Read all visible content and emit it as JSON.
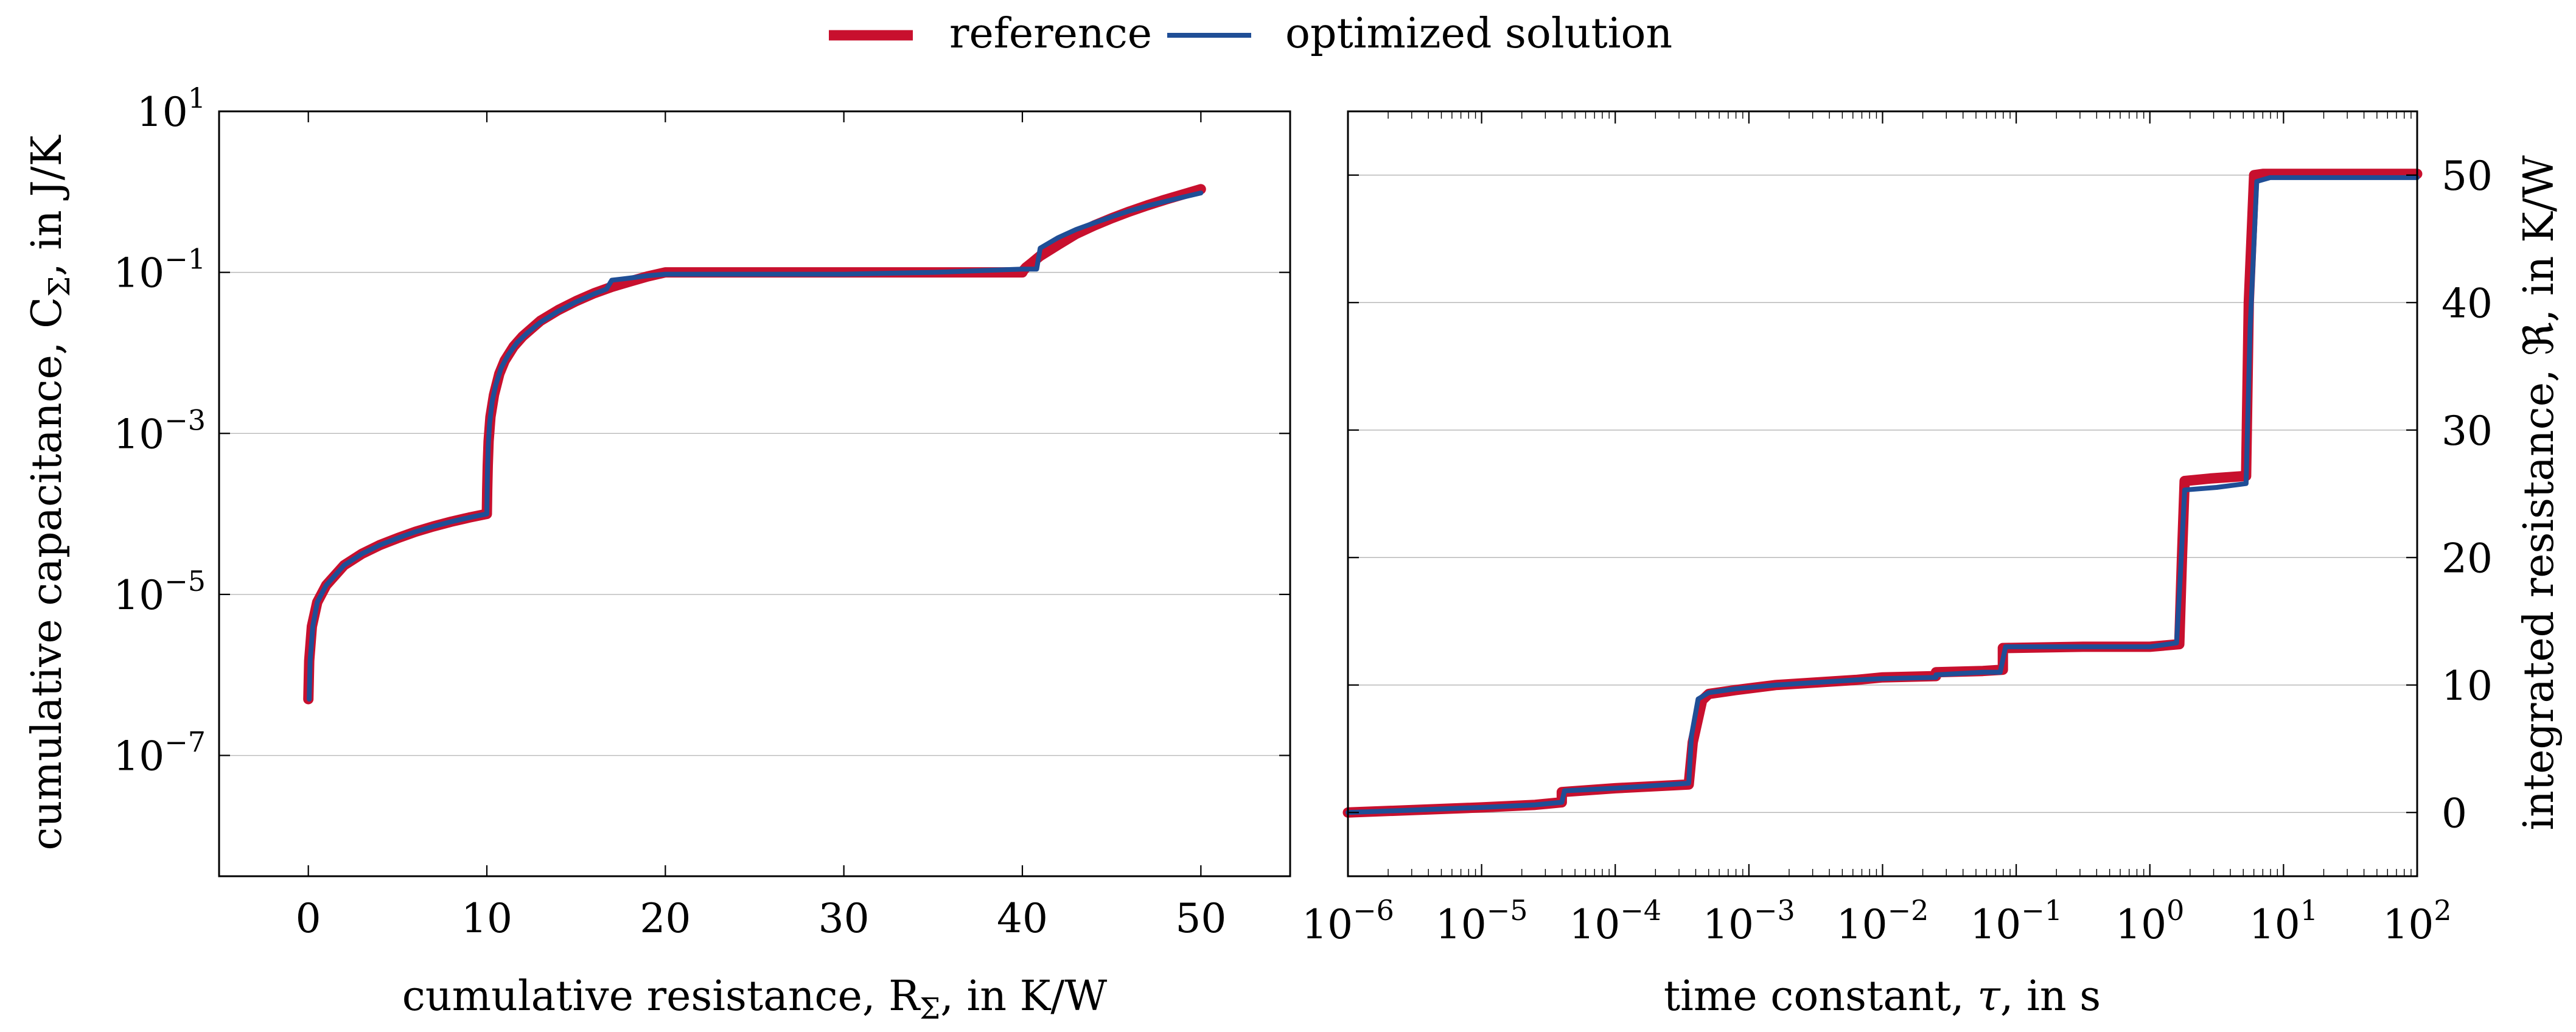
{
  "legend": {
    "reference_label": "reference",
    "optimized_label": "optimized solution",
    "reference_color": "#c8102e",
    "optimized_color": "#1f4e96"
  },
  "chart_data": [
    {
      "type": "line",
      "id": "cumulative",
      "xlabel": "cumulative resistance, R",
      "xlabel_sub": "Σ",
      "xlabel_tail": ", in K/W",
      "ylabel": "cumulative capacitance, C",
      "ylabel_sub": "Σ",
      "ylabel_tail": ", in J/K",
      "xscale": "linear",
      "yscale": "log",
      "xlim": [
        -5,
        55
      ],
      "ylim_exp": [
        -8.5,
        1
      ],
      "xticks": [
        0,
        10,
        20,
        30,
        40,
        50
      ],
      "xtick_labels": [
        "0",
        "10",
        "20",
        "30",
        "40",
        "50"
      ],
      "yticks_exp": [
        -7,
        -5,
        -3,
        -1,
        1
      ],
      "ytick_labels": [
        {
          "base": "10",
          "exp": "−7"
        },
        {
          "base": "10",
          "exp": "−5"
        },
        {
          "base": "10",
          "exp": "−3"
        },
        {
          "base": "10",
          "exp": "−1"
        },
        {
          "base": "10",
          "exp": "1"
        }
      ],
      "series": [
        {
          "name": "reference",
          "x": [
            0,
            0.05,
            0.2,
            0.5,
            1,
            2,
            3,
            4,
            5,
            6,
            7,
            8,
            9,
            10,
            10.02,
            10.05,
            10.1,
            10.2,
            10.4,
            10.7,
            11,
            11.5,
            12,
            12.5,
            13,
            14,
            15,
            16,
            17,
            18,
            19,
            20,
            25,
            30,
            35,
            40,
            40.05,
            40.2,
            40.5,
            41,
            42,
            43,
            44,
            45,
            46,
            47,
            48,
            49,
            50
          ],
          "y": [
            5e-07,
            1.5e-06,
            4e-06,
            8e-06,
            1.3e-05,
            2.3e-05,
            3.2e-05,
            4.1e-05,
            5e-05,
            6e-05,
            7e-05,
            8e-05,
            9e-05,
            0.0001,
            0.0002,
            0.0004,
            0.0008,
            0.0016,
            0.003,
            0.0055,
            0.008,
            0.012,
            0.016,
            0.02,
            0.025,
            0.034,
            0.044,
            0.055,
            0.066,
            0.077,
            0.089,
            0.1,
            0.1,
            0.1,
            0.1,
            0.1,
            0.105,
            0.115,
            0.13,
            0.16,
            0.22,
            0.3,
            0.38,
            0.47,
            0.57,
            0.68,
            0.8,
            0.93,
            1.08
          ]
        },
        {
          "name": "optimized solution",
          "x": [
            0.05,
            0.1,
            0.25,
            0.5,
            1,
            2,
            3,
            4,
            5,
            6,
            7,
            8,
            9,
            10,
            10.03,
            10.08,
            10.15,
            10.3,
            10.5,
            10.8,
            11.2,
            11.7,
            12.3,
            13,
            14,
            15,
            16,
            16.7,
            17,
            18,
            19,
            20,
            25,
            30,
            35,
            40,
            40.8,
            41,
            42,
            43,
            44,
            45,
            46,
            47,
            48,
            49,
            50
          ],
          "y": [
            5e-07,
            1.5e-06,
            4e-06,
            8e-06,
            1.3e-05,
            2.3e-05,
            3.2e-05,
            4.1e-05,
            5e-05,
            6e-05,
            7e-05,
            8e-05,
            9e-05,
            0.0001,
            0.0003,
            0.0007,
            0.0013,
            0.0025,
            0.004,
            0.0065,
            0.0095,
            0.0135,
            0.018,
            0.024,
            0.033,
            0.043,
            0.054,
            0.062,
            0.08,
            0.085,
            0.091,
            0.095,
            0.095,
            0.095,
            0.1,
            0.11,
            0.11,
            0.2,
            0.27,
            0.34,
            0.41,
            0.49,
            0.58,
            0.67,
            0.76,
            0.86,
            0.97
          ]
        }
      ]
    },
    {
      "type": "line",
      "id": "integrated",
      "xlabel": "time constant, ",
      "xlabel_greek": "τ",
      "xlabel_tail": ", in s",
      "ylabel": "integrated resistance, ",
      "ylabel_symbol": "ℜ",
      "ylabel_tail": ", in K/W",
      "xscale": "log",
      "yscale": "linear",
      "yaxis_side": "right",
      "xlim_exp": [
        -6,
        2
      ],
      "ylim": [
        -5,
        55
      ],
      "xticks_exp": [
        -6,
        -5,
        -4,
        -3,
        -2,
        -1,
        0,
        1,
        2
      ],
      "xtick_labels": [
        {
          "base": "10",
          "exp": "−6"
        },
        {
          "base": "10",
          "exp": "−5"
        },
        {
          "base": "10",
          "exp": "−4"
        },
        {
          "base": "10",
          "exp": "−3"
        },
        {
          "base": "10",
          "exp": "−2"
        },
        {
          "base": "10",
          "exp": "−1"
        },
        {
          "base": "10",
          "exp": "0"
        },
        {
          "base": "10",
          "exp": "1"
        },
        {
          "base": "10",
          "exp": "2"
        }
      ],
      "yticks": [
        0,
        10,
        20,
        30,
        40,
        50
      ],
      "ytick_labels": [
        "0",
        "10",
        "20",
        "30",
        "40",
        "50"
      ],
      "series": [
        {
          "name": "reference",
          "xexp": [
            -6,
            -5,
            -4.6,
            -4.4,
            -4.4,
            -4.0,
            -3.45,
            -3.42,
            -3.35,
            -3.3,
            -3.1,
            -2.8,
            -2.5,
            -2.2,
            -2.0,
            -1.6,
            -1.6,
            -1.25,
            -1.1,
            -1.1,
            -0.5,
            0.0,
            0.22,
            0.24,
            0.26,
            0.45,
            0.72,
            0.74,
            0.78,
            0.85,
            1.2,
            2.0
          ],
          "y": [
            0,
            0.4,
            0.6,
            0.8,
            1.6,
            1.9,
            2.2,
            5.5,
            8.8,
            9.3,
            9.6,
            10.0,
            10.2,
            10.4,
            10.6,
            10.7,
            11.0,
            11.1,
            11.2,
            12.9,
            13.0,
            13.0,
            13.2,
            20,
            26,
            26.2,
            26.4,
            40,
            50,
            50.1,
            50.1,
            50.1
          ]
        },
        {
          "name": "optimized solution",
          "xexp": [
            -6,
            -5,
            -4.6,
            -4.4,
            -4.38,
            -4.0,
            -3.45,
            -3.43,
            -3.38,
            -3.3,
            -3.1,
            -2.8,
            -2.5,
            -2.2,
            -2.0,
            -1.6,
            -1.6,
            -1.25,
            -1.12,
            -1.08,
            -0.5,
            0.0,
            0.2,
            0.23,
            0.26,
            0.5,
            0.72,
            0.75,
            0.8,
            0.9,
            1.2,
            2.0
          ],
          "y": [
            0,
            0.4,
            0.6,
            0.8,
            1.7,
            1.9,
            2.3,
            6.0,
            8.9,
            9.4,
            9.7,
            10.0,
            10.2,
            10.4,
            10.5,
            10.6,
            10.8,
            11.0,
            11.0,
            13.0,
            13.0,
            13.0,
            13.3,
            19,
            25.3,
            25.5,
            25.8,
            38,
            49.5,
            49.8,
            49.8,
            49.8
          ]
        }
      ]
    }
  ]
}
